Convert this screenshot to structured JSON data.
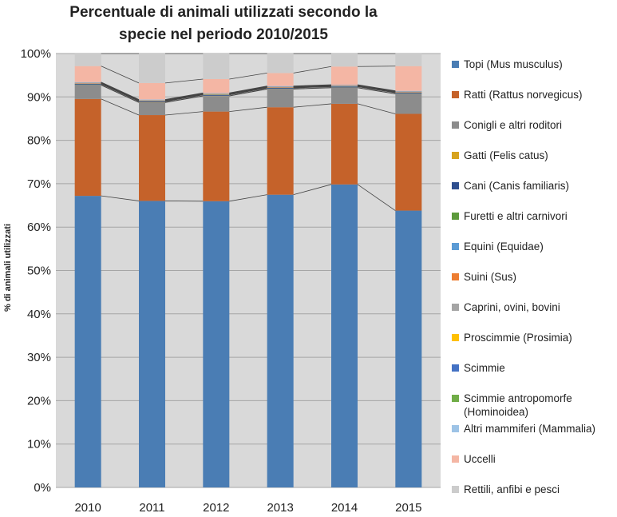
{
  "chart_data": {
    "type": "bar",
    "stacked": true,
    "percent": true,
    "title": "Percentuale di animali utilizzati secondo la specie nel periodo 2010/2015",
    "title_lines": [
      "Percentuale di animali utilizzati secondo la",
      "specie nel periodo 2010/2015"
    ],
    "ylabel": "% di animali utilizzati",
    "xlabel": "",
    "ylim": [
      0,
      100
    ],
    "yticks": [
      "0%",
      "10%",
      "20%",
      "30%",
      "40%",
      "50%",
      "60%",
      "70%",
      "80%",
      "90%",
      "100%"
    ],
    "grid": true,
    "legend_position": "right",
    "categories": [
      "2010",
      "2011",
      "2012",
      "2013",
      "2014",
      "2015"
    ],
    "series": [
      {
        "name": "Topi (Mus musculus)",
        "color": "#4a7db4",
        "values": [
          67.4,
          66.1,
          66.1,
          67.6,
          69.9,
          63.8
        ]
      },
      {
        "name": "Ratti (Rattus norvegicus)",
        "color": "#c5622a",
        "values": [
          22.4,
          19.8,
          20.7,
          20.2,
          18.6,
          22.3
        ]
      },
      {
        "name": "Conigli e altri roditori",
        "color": "#8c8c8c",
        "values": [
          3.2,
          2.9,
          3.6,
          4.2,
          3.7,
          4.6
        ]
      },
      {
        "name": "Gatti (Felis catus)",
        "color": "#d7a31e",
        "values": [
          0.05,
          0.05,
          0.05,
          0.05,
          0.05,
          0.05
        ]
      },
      {
        "name": "Cani (Canis familiaris)",
        "color": "#2e4f8f",
        "values": [
          0.2,
          0.2,
          0.2,
          0.2,
          0.2,
          0.2
        ]
      },
      {
        "name": "Furetti e altri carnivori",
        "color": "#5d9a3c",
        "values": [
          0.05,
          0.05,
          0.05,
          0.05,
          0.05,
          0.05
        ]
      },
      {
        "name": "Equini (Equidae)",
        "color": "#5b9bd5",
        "values": [
          0.05,
          0.05,
          0.05,
          0.05,
          0.05,
          0.05
        ]
      },
      {
        "name": "Suini (Sus)",
        "color": "#ed7d31",
        "values": [
          0.1,
          0.1,
          0.1,
          0.1,
          0.1,
          0.1
        ]
      },
      {
        "name": "Caprini, ovini, bovini",
        "color": "#a5a5a5",
        "values": [
          0.1,
          0.1,
          0.1,
          0.1,
          0.1,
          0.1
        ]
      },
      {
        "name": "Proscimmie (Prosimia)",
        "color": "#ffc000",
        "values": [
          0.02,
          0.02,
          0.02,
          0.02,
          0.02,
          0.02
        ]
      },
      {
        "name": "Scimmie",
        "color": "#4472c4",
        "values": [
          0.05,
          0.05,
          0.05,
          0.05,
          0.05,
          0.05
        ]
      },
      {
        "name": "Scimmie antropomorfe (Hominoidea)",
        "color": "#70ad47",
        "values": [
          0.0,
          0.0,
          0.0,
          0.0,
          0.0,
          0.0
        ]
      },
      {
        "name": "Altri mammiferi (Mammalia)",
        "color": "#9dc3e6",
        "values": [
          0.08,
          0.08,
          0.08,
          0.08,
          0.08,
          0.08
        ]
      },
      {
        "name": "Uccelli",
        "color": "#f4b6a4",
        "values": [
          3.7,
          3.8,
          3.2,
          3.0,
          4.2,
          5.7
        ]
      },
      {
        "name": "Rettili, anfibi e pesci",
        "color": "#cccccc",
        "values": [
          2.9,
          6.8,
          5.9,
          4.5,
          3.0,
          2.9
        ]
      }
    ]
  },
  "colors": {
    "plot_background": "#d9d9d9",
    "gridline": "#a6a6a6",
    "series_line": "#444444"
  }
}
